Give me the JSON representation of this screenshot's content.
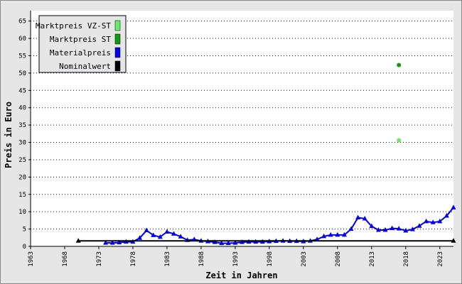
{
  "chart_data": {
    "type": "line",
    "xlabel": "Zeit in Jahren",
    "ylabel": "Preis in Euro",
    "xlim": [
      1963,
      2025
    ],
    "xticks": [
      1963,
      1968,
      1973,
      1978,
      1983,
      1988,
      1993,
      1998,
      2003,
      2008,
      2013,
      2018,
      2023
    ],
    "ylim": [
      0,
      68
    ],
    "yticks": [
      0,
      5,
      10,
      15,
      20,
      25,
      30,
      35,
      40,
      45,
      50,
      55,
      60,
      65
    ],
    "grid": true,
    "legend": "upper left",
    "series": [
      {
        "name": "Marktpreis VZ-ST",
        "color": "#66ee66",
        "marker": "circle",
        "line": false,
        "x": [
          2017
        ],
        "values": [
          30.6
        ]
      },
      {
        "name": "Marktpreis ST",
        "color": "#119911",
        "marker": "circle",
        "line": false,
        "x": [
          2017
        ],
        "values": [
          52.3
        ]
      },
      {
        "name": "Materialpreis",
        "color": "#0000ee",
        "marker": "triangle",
        "line": true,
        "x": [
          1974,
          1975,
          1976,
          1977,
          1978,
          1979,
          1980,
          1981,
          1982,
          1983,
          1984,
          1985,
          1986,
          1987,
          1988,
          1989,
          1990,
          1991,
          1992,
          1993,
          1994,
          1995,
          1996,
          1997,
          1998,
          1999,
          2000,
          2001,
          2002,
          2003,
          2004,
          2005,
          2006,
          2007,
          2008,
          2009,
          2010,
          2011,
          2012,
          2013,
          2014,
          2015,
          2016,
          2017,
          2018,
          2019,
          2020,
          2021,
          2022,
          2023,
          2024,
          2025
        ],
        "values": [
          1.0,
          1.0,
          1.1,
          1.3,
          1.3,
          2.4,
          4.6,
          3.2,
          2.7,
          4.2,
          3.6,
          2.8,
          1.8,
          2.0,
          1.6,
          1.4,
          1.2,
          0.9,
          0.9,
          1.0,
          1.2,
          1.3,
          1.3,
          1.3,
          1.4,
          1.5,
          1.6,
          1.5,
          1.5,
          1.4,
          1.6,
          2.0,
          2.9,
          3.3,
          3.3,
          3.3,
          5.0,
          8.3,
          8.0,
          5.8,
          4.7,
          4.7,
          5.2,
          5.1,
          4.5,
          4.9,
          5.9,
          7.2,
          6.9,
          7.2,
          8.8,
          11.2
        ]
      },
      {
        "name": "Nominalwert",
        "color": "#000000",
        "marker": "triangle",
        "line": true,
        "x": [
          1970,
          2025
        ],
        "values": [
          1.6,
          1.6
        ]
      }
    ]
  }
}
